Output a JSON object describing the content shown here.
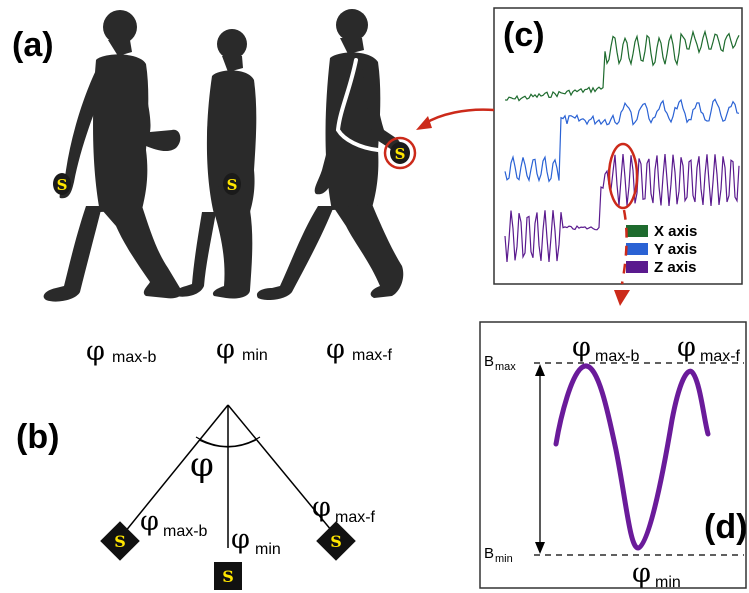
{
  "panel_labels": {
    "a": "(a)",
    "b": "(b)",
    "c": "(c)",
    "d": "(d)"
  },
  "sensor_letter": "S",
  "panel_a": {
    "labels": [
      {
        "symbol": "φ",
        "sub": "max-b"
      },
      {
        "symbol": "φ",
        "sub": "min"
      },
      {
        "symbol": "φ",
        "sub": "max-f"
      }
    ]
  },
  "panel_b": {
    "angle_symbol": "φ",
    "labels": [
      {
        "symbol": "φ",
        "sub": "max-b"
      },
      {
        "symbol": "φ",
        "sub": "min"
      },
      {
        "symbol": "φ",
        "sub": "max-f"
      }
    ]
  },
  "panel_c": {
    "legend": [
      {
        "label": "X axis",
        "color": "#1e6b2e"
      },
      {
        "label": "Y axis",
        "color": "#2a62d4"
      },
      {
        "label": "Z axis",
        "color": "#5a1a8e"
      }
    ],
    "highlight_color": "#cc2a1a"
  },
  "panel_d": {
    "b_max": {
      "main": "B",
      "sub": "max"
    },
    "b_min": {
      "main": "B",
      "sub": "min"
    },
    "peaks": [
      {
        "symbol": "φ",
        "sub": "max-b"
      },
      {
        "symbol": "φ",
        "sub": "max-f"
      }
    ],
    "trough": {
      "symbol": "φ",
      "sub": "min"
    },
    "curve_color": "#6a1b9a"
  }
}
